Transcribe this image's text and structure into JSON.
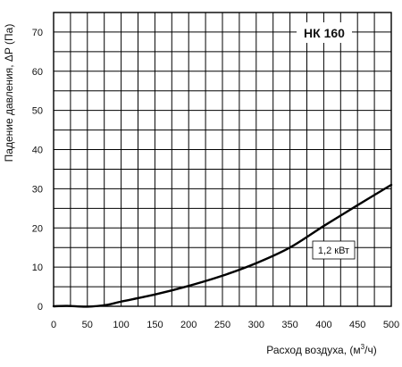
{
  "chart_data": {
    "type": "line",
    "title": "",
    "xlabel": "Расход воздуха, (м",
    "xlabel_sup": "3",
    "xlabel_tail": "/ч)",
    "ylabel": "Падение давления, ΔP (Па)",
    "xlim": [
      0,
      500
    ],
    "ylim": [
      0,
      75
    ],
    "x_ticks": [
      0,
      50,
      100,
      150,
      200,
      250,
      300,
      350,
      400,
      450,
      500
    ],
    "y_ticks": [
      0,
      10,
      20,
      30,
      40,
      50,
      60,
      70
    ],
    "x_minor_step": 25,
    "y_minor_step": 5,
    "grid": true,
    "model_label": "НК 160",
    "series": [
      {
        "name": "1,2 кВт",
        "x": [
          0,
          20,
          50,
          80,
          100,
          150,
          200,
          250,
          300,
          350,
          400,
          450,
          500
        ],
        "y": [
          0,
          0.1,
          -0.1,
          0.4,
          1.2,
          3.0,
          5.2,
          7.8,
          11.0,
          15.0,
          20.5,
          25.8,
          31.0
        ]
      }
    ],
    "line_color": "#000000",
    "grid_color": "#000000"
  }
}
